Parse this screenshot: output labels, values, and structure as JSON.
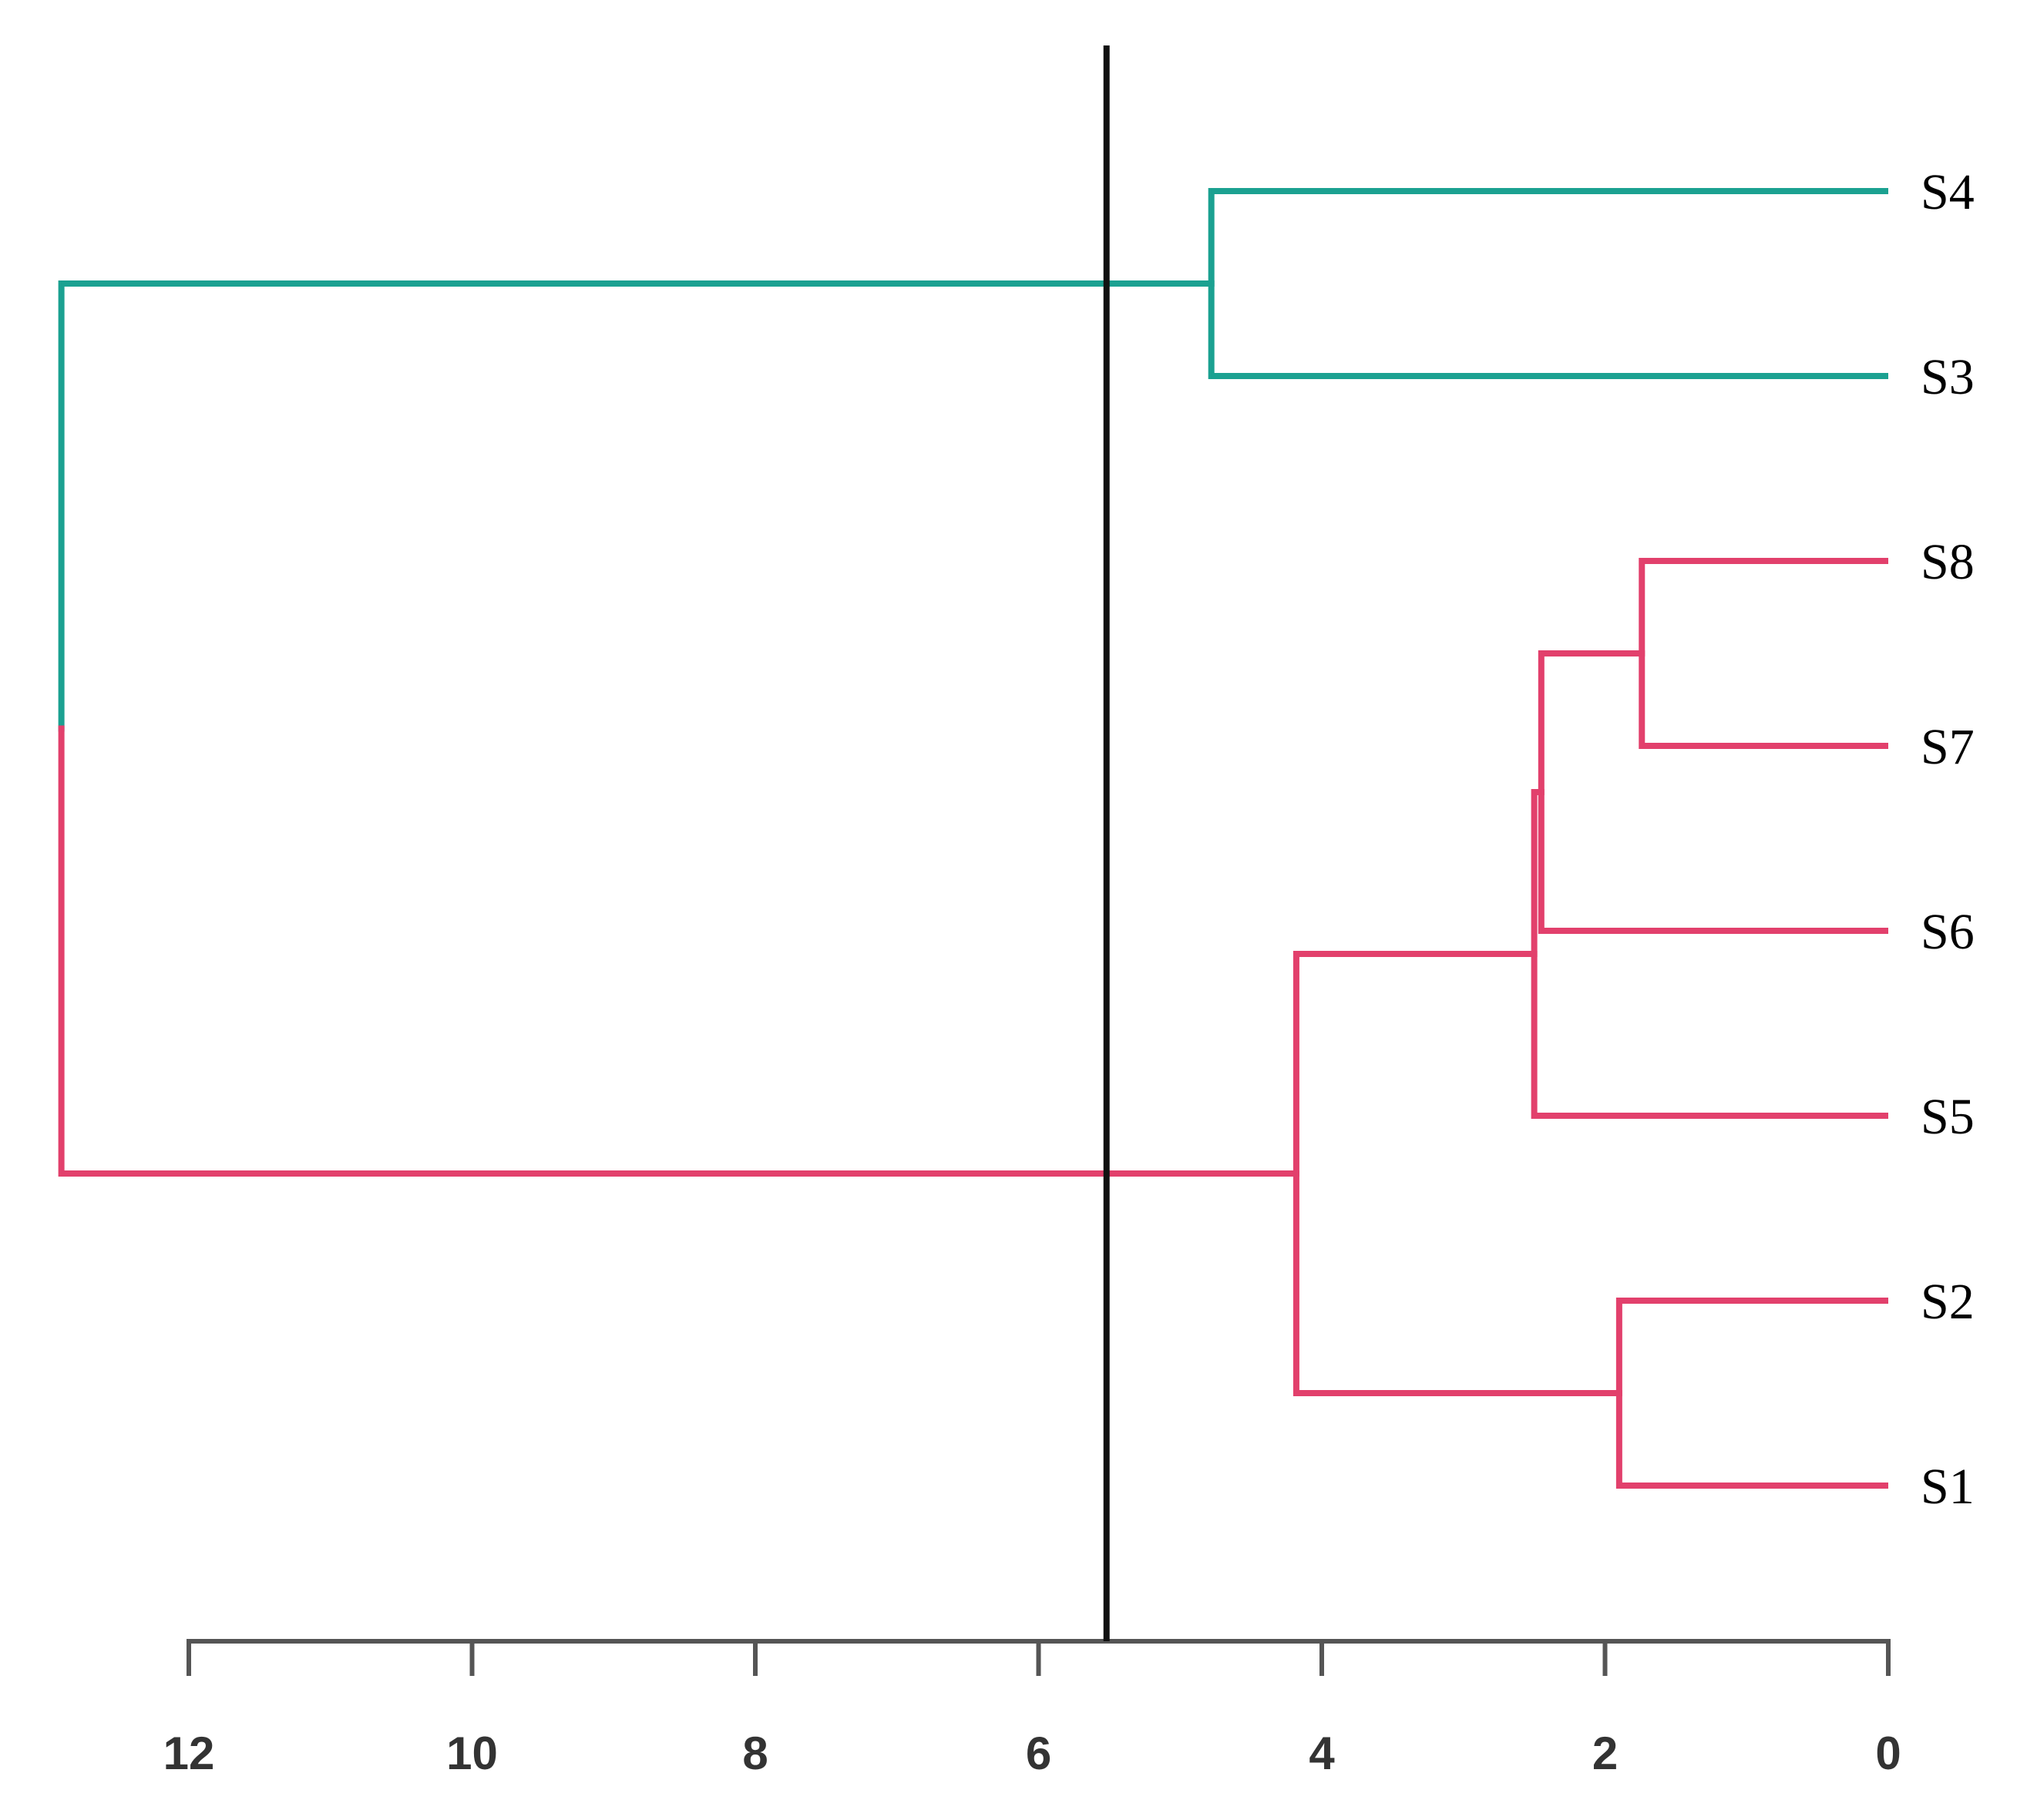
{
  "chart_data": {
    "type": "dendrogram",
    "leaves": [
      "S4",
      "S3",
      "S8",
      "S7",
      "S6",
      "S5",
      "S2",
      "S1"
    ],
    "leaf_colors": [
      "#1ba191",
      "#1ba191",
      "#e2406c",
      "#e2406c",
      "#e2406c",
      "#e2406c",
      "#e2406c",
      "#e2406c"
    ],
    "merges": [
      {
        "left": 0,
        "right": 1,
        "height": 4.78
      },
      {
        "left": 2,
        "right": 3,
        "height": 1.74
      },
      {
        "left": 9,
        "right": 4,
        "height": 2.45
      },
      {
        "left": 10,
        "right": 5,
        "height": 2.5
      },
      {
        "left": 6,
        "right": 7,
        "height": 1.9
      },
      {
        "left": 11,
        "right": 12,
        "height": 4.18
      },
      {
        "left": 8,
        "right": 13,
        "height": 12.9
      }
    ],
    "cut_height": 5.52,
    "xlim": [
      0,
      12
    ],
    "x_reversed": true,
    "xticks": [
      0,
      2,
      4,
      6,
      8,
      10,
      12
    ]
  }
}
